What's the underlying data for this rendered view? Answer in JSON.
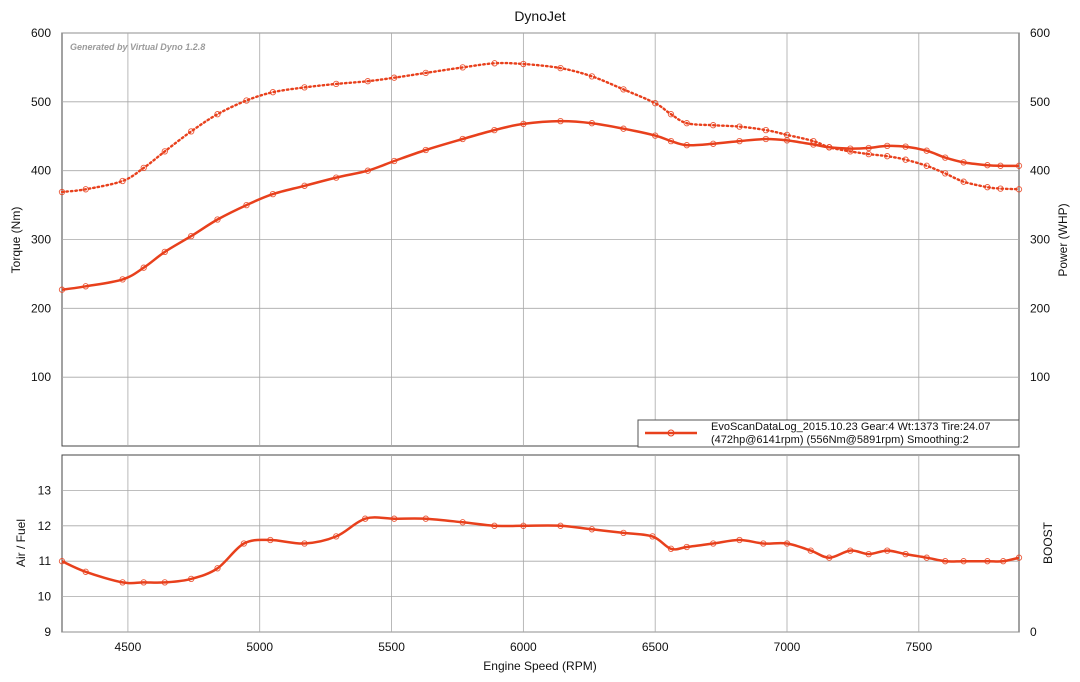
{
  "chart_data": [
    {
      "panel": "top",
      "type": "line",
      "title": "DynoJet",
      "watermark": "Generated by Virtual Dyno 1.2.8",
      "xlabel": "Engine Speed (RPM)",
      "ylabel": "Torque (Nm)",
      "ylabel_right": "Power (WHP)",
      "xlim": [
        4250,
        7880
      ],
      "ylim": [
        0,
        600
      ],
      "x_ticks": [
        4500,
        5000,
        5500,
        6000,
        6500,
        7000,
        7500
      ],
      "y_ticks": [
        100,
        200,
        300,
        400,
        500,
        600
      ],
      "grid": true,
      "legend": {
        "position": "bottom-right",
        "line1": "EvoScanDataLog_2015.10.23 Gear:4 Wt:1373 Tire:24.07",
        "line2": "(472hp@6141rpm) (556Nm@5891rpm) Smoothing:2"
      },
      "series": [
        {
          "style": "solid",
          "color": "#e8401c",
          "x": [
            4250,
            4340,
            4480,
            4560,
            4640,
            4740,
            4840,
            4950,
            5050,
            5170,
            5290,
            5410,
            5510,
            5630,
            5770,
            5890,
            6000,
            6141,
            6260,
            6380,
            6500,
            6560,
            6620,
            6720,
            6820,
            6920,
            7000,
            7100,
            7160,
            7240,
            7310,
            7380,
            7450,
            7530,
            7600,
            7670,
            7760,
            7810,
            7880
          ],
          "values": [
            227,
            232,
            242,
            259,
            282,
            305,
            329,
            350,
            366,
            378,
            390,
            400,
            414,
            430,
            446,
            459,
            468,
            472,
            469,
            461,
            451,
            443,
            437,
            439,
            443,
            446,
            444,
            438,
            434,
            432,
            433,
            436,
            435,
            429,
            419,
            412,
            408,
            407,
            407
          ]
        },
        {
          "style": "dotted",
          "color": "#e8401c",
          "x": [
            4250,
            4340,
            4480,
            4560,
            4640,
            4740,
            4840,
            4950,
            5050,
            5170,
            5290,
            5410,
            5510,
            5630,
            5770,
            5891,
            6000,
            6141,
            6260,
            6380,
            6500,
            6560,
            6620,
            6720,
            6820,
            6920,
            7000,
            7100,
            7160,
            7240,
            7310,
            7380,
            7450,
            7530,
            7600,
            7670,
            7760,
            7810,
            7880
          ],
          "values": [
            369,
            373,
            385,
            404,
            428,
            457,
            482,
            502,
            514,
            521,
            526,
            530,
            535,
            542,
            550,
            556,
            555,
            549,
            537,
            518,
            498,
            482,
            469,
            466,
            464,
            459,
            452,
            443,
            434,
            428,
            424,
            421,
            416,
            407,
            396,
            384,
            376,
            374,
            373
          ]
        }
      ]
    },
    {
      "panel": "bottom",
      "type": "line",
      "xlabel": "Engine Speed (RPM)",
      "ylabel": "Air / Fuel",
      "ylabel_right": "BOOST",
      "xlim": [
        4250,
        7880
      ],
      "ylim": [
        9,
        14
      ],
      "x_ticks": [
        4500,
        5000,
        5500,
        6000,
        6500,
        7000,
        7500
      ],
      "y_ticks": [
        9,
        10,
        11,
        12,
        13
      ],
      "y_right_ticks": [
        "0"
      ],
      "grid": true,
      "series": [
        {
          "style": "solid",
          "color": "#e8401c",
          "x": [
            4250,
            4340,
            4480,
            4560,
            4640,
            4740,
            4840,
            4940,
            5040,
            5170,
            5290,
            5400,
            5510,
            5630,
            5770,
            5890,
            6000,
            6141,
            6260,
            6380,
            6490,
            6560,
            6620,
            6720,
            6820,
            6910,
            7000,
            7090,
            7160,
            7240,
            7310,
            7380,
            7450,
            7530,
            7600,
            7670,
            7760,
            7820,
            7880
          ],
          "values": [
            11.0,
            10.7,
            10.4,
            10.4,
            10.4,
            10.5,
            10.8,
            11.5,
            11.6,
            11.5,
            11.7,
            12.2,
            12.2,
            12.2,
            12.1,
            12.0,
            12.0,
            12.0,
            11.9,
            11.8,
            11.7,
            11.35,
            11.4,
            11.5,
            11.6,
            11.5,
            11.5,
            11.3,
            11.1,
            11.3,
            11.2,
            11.3,
            11.2,
            11.1,
            11.0,
            11.0,
            11.0,
            11.0,
            11.1
          ]
        }
      ]
    }
  ]
}
